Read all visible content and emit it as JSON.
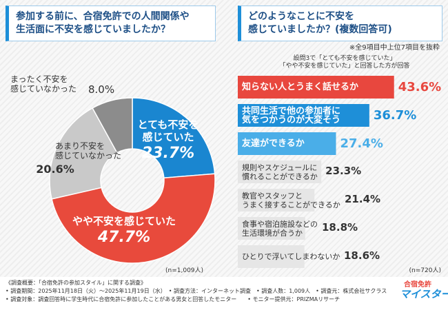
{
  "chart_data": [
    {
      "type": "pie",
      "title": [
        "参加する前に、合宿免許での人間関係や",
        "生活面に不安を感じていましたか？"
      ],
      "categories": [
        "とても不安を\n感じていた",
        "やや不安を感じていた",
        "あまり不安を\n感じていなかった",
        "まったく不安を\n感じていなかった"
      ],
      "values": [
        23.7,
        47.7,
        20.6,
        8.0
      ],
      "value_labels": [
        "23.7%",
        "47.7%",
        "20.6%",
        "8.0%"
      ],
      "colors": [
        "#1a86d0",
        "#e84a3c",
        "#c9c9c9",
        "#8c8c8c"
      ],
      "note": "(n=1,009人)"
    },
    {
      "type": "bar",
      "title": [
        "どのようなことに不安を",
        "感じていましたか？(複数回答可)"
      ],
      "subtitle": "※全9項目中上位7項目を抜粋",
      "caption": "設問3で「とても不安を感じていた」\n「やや不安を感じていた」と回答した方が回答",
      "categories": [
        "知らない人とうまく話せるか",
        "共同生活で他の参加者に\n気をつかうのが大変そう",
        "友達ができるか",
        "規則やスケジュールに\n慣れることができるか",
        "教官やスタッフと\nうまく接することができるか",
        "食事や宿泊施設などの\n生活環境が合うか",
        "ひとりで浮いてしまわないか"
      ],
      "values": [
        43.6,
        36.7,
        27.4,
        23.3,
        21.4,
        18.8,
        18.6
      ],
      "value_labels": [
        "43.6%",
        "36.7%",
        "27.4%",
        "23.3%",
        "21.4%",
        "18.8%",
        "18.6%"
      ],
      "colors": [
        "#e8473e",
        "#1e8fd8",
        "#4aaee8",
        "#e6e6e6",
        "#e6e6e6",
        "#e6e6e6",
        "#e6e6e6"
      ],
      "note": "(n=720人)"
    }
  ],
  "footer": {
    "lines": [
      "《調査概要：「合宿免許の参加スタイル」に関する調査》",
      "• 調査期間：2025年11月18日（火）～2025年11月19日（水）　• 調査方法：インターネット調査　• 調査人数：1,009人　• 調査元：株式会社サクラス",
      "• 調査対象：調査回答時に学生時代に合宿免許に参加したことがある男女と回答したモニター　　• モニター提供元：PRIZMAリサーチ"
    ]
  },
  "logo": {
    "top": "合宿免許",
    "bottom": "マイスター"
  }
}
